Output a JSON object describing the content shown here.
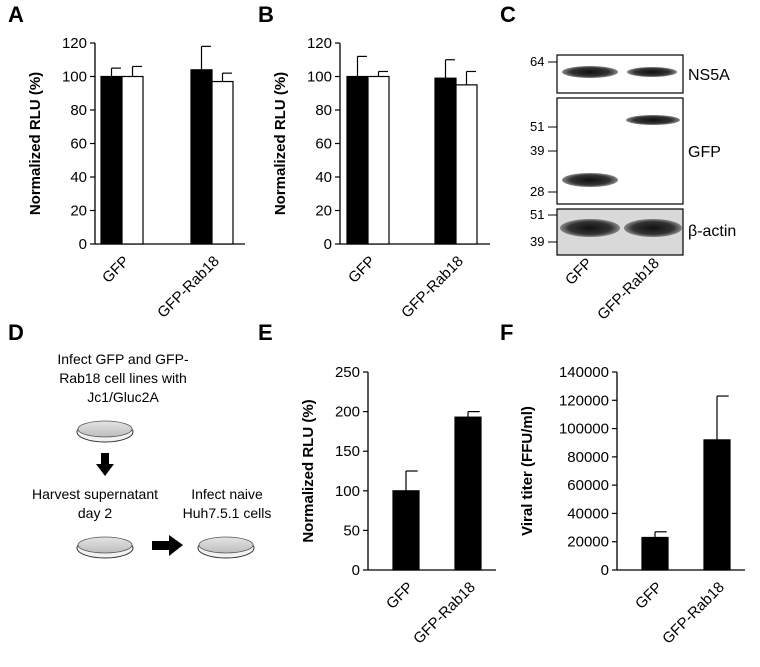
{
  "panels": {
    "A": "A",
    "B": "B",
    "C": "C",
    "D": "D",
    "E": "E",
    "F": "F"
  },
  "chart_data": [
    {
      "id": "A",
      "type": "bar",
      "ylabel": "Normalized RLU (%)",
      "ylim": [
        0,
        120
      ],
      "yticks": [
        0,
        20,
        40,
        60,
        80,
        100,
        120
      ],
      "categories": [
        "GFP",
        "GFP-Rab18"
      ],
      "series": [
        {
          "fill": "#000000",
          "values": [
            100,
            104
          ],
          "errors": [
            5,
            14
          ]
        },
        {
          "fill": "#ffffff",
          "values": [
            100,
            97
          ],
          "errors": [
            6,
            5
          ]
        }
      ]
    },
    {
      "id": "B",
      "type": "bar",
      "ylabel": "Normalized RLU (%)",
      "ylim": [
        0,
        120
      ],
      "yticks": [
        0,
        20,
        40,
        60,
        80,
        100,
        120
      ],
      "categories": [
        "GFP",
        "GFP-Rab18"
      ],
      "series": [
        {
          "fill": "#000000",
          "values": [
            100,
            99
          ],
          "errors": [
            12,
            11
          ]
        },
        {
          "fill": "#ffffff",
          "values": [
            100,
            95
          ],
          "errors": [
            3,
            8
          ]
        }
      ]
    },
    {
      "id": "E",
      "type": "bar",
      "ylabel": "Normalized RLU (%)",
      "ylim": [
        0,
        250
      ],
      "yticks": [
        0,
        50,
        100,
        150,
        200,
        250
      ],
      "categories": [
        "GFP",
        "GFP-Rab18"
      ],
      "series": [
        {
          "fill": "#000000",
          "values": [
            100,
            193
          ],
          "errors": [
            25,
            7
          ]
        }
      ]
    },
    {
      "id": "F",
      "type": "bar",
      "ylabel": "Viral titer (FFU/ml)",
      "ylim": [
        0,
        140000
      ],
      "yticks": [
        0,
        20000,
        40000,
        60000,
        80000,
        100000,
        120000,
        140000
      ],
      "categories": [
        "GFP",
        "GFP-Rab18"
      ],
      "series": [
        {
          "fill": "#000000",
          "values": [
            23000,
            92000
          ],
          "errors": [
            4000,
            31000
          ]
        }
      ]
    }
  ],
  "blot": {
    "bands": [
      {
        "label": "NS5A",
        "markers": [
          "64"
        ]
      },
      {
        "label": "GFP",
        "markers": [
          "51",
          "39",
          "28"
        ]
      },
      {
        "label": "β-actin",
        "markers": [
          "51",
          "39"
        ]
      }
    ],
    "lanes": [
      "GFP",
      "GFP-Rab18"
    ]
  },
  "diagram": {
    "step1_line1": "Infect GFP and GFP-",
    "step1_line2": "Rab18 cell lines with",
    "step1_line3": "Jc1/Gluc2A",
    "step2_line1": "Harvest supernatant",
    "step2_line2": "day 2",
    "step3_line1": "Infect naive",
    "step3_line2": "Huh7.5.1 cells"
  }
}
